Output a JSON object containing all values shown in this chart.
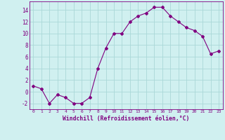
{
  "x": [
    0,
    1,
    2,
    3,
    4,
    5,
    6,
    7,
    8,
    9,
    10,
    11,
    12,
    13,
    14,
    15,
    16,
    17,
    18,
    19,
    20,
    21,
    22,
    23
  ],
  "y": [
    1,
    0.5,
    -2,
    -0.5,
    -1,
    -2,
    -2,
    -1,
    4,
    7.5,
    10,
    10,
    12,
    13,
    13.5,
    14.5,
    14.5,
    13,
    12,
    11,
    10.5,
    9.5,
    6.5,
    7
  ],
  "line_color": "#800080",
  "marker": "D",
  "marker_size": 2,
  "bg_color": "#d0f0f0",
  "grid_color": "#aad8d8",
  "xlabel": "Windchill (Refroidissement éolien,°C)",
  "ylim": [
    -3,
    15.5
  ],
  "xlim": [
    -0.5,
    23.5
  ],
  "yticks": [
    -2,
    0,
    2,
    4,
    6,
    8,
    10,
    12,
    14
  ],
  "xticks": [
    0,
    1,
    2,
    3,
    4,
    5,
    6,
    7,
    8,
    9,
    10,
    11,
    12,
    13,
    14,
    15,
    16,
    17,
    18,
    19,
    20,
    21,
    22,
    23
  ]
}
